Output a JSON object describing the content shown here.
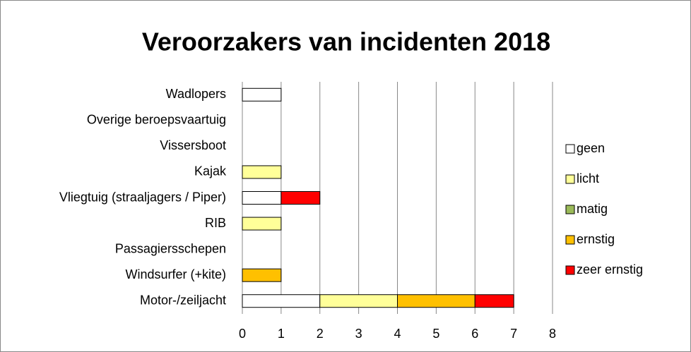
{
  "chart_data": {
    "type": "stacked_barh",
    "title": "Veroorzakers van incidenten 2018",
    "categories": [
      "Wadlopers",
      "Overige beroepsvaartuig",
      "Vissersboot",
      "Kajak",
      "Vliegtuig (straaljagers / Piper)",
      "RIB",
      "Passagiersschepen",
      "Windsurfer (+kite)",
      "Motor-/zeiljacht"
    ],
    "series": [
      {
        "name": "geen",
        "color": "#ffffff",
        "values": [
          1,
          0,
          0,
          0,
          1,
          0,
          0,
          0,
          2
        ]
      },
      {
        "name": "licht",
        "color": "#ffff99",
        "values": [
          0,
          0,
          0,
          1,
          0,
          1,
          0,
          0,
          2
        ]
      },
      {
        "name": "matig",
        "color": "#9bbb59",
        "values": [
          0,
          0,
          0,
          0,
          0,
          0,
          0,
          0,
          0
        ]
      },
      {
        "name": "ernstig",
        "color": "#ffc000",
        "values": [
          0,
          0,
          0,
          0,
          0,
          0,
          0,
          1,
          2
        ]
      },
      {
        "name": "zeer ernstig",
        "color": "#ff0000",
        "values": [
          0,
          0,
          0,
          0,
          1,
          0,
          0,
          0,
          1
        ]
      }
    ],
    "xlim": [
      0,
      8
    ],
    "xticks": [
      0,
      1,
      2,
      3,
      4,
      5,
      6,
      7,
      8
    ],
    "grid": true,
    "legend": "right"
  }
}
